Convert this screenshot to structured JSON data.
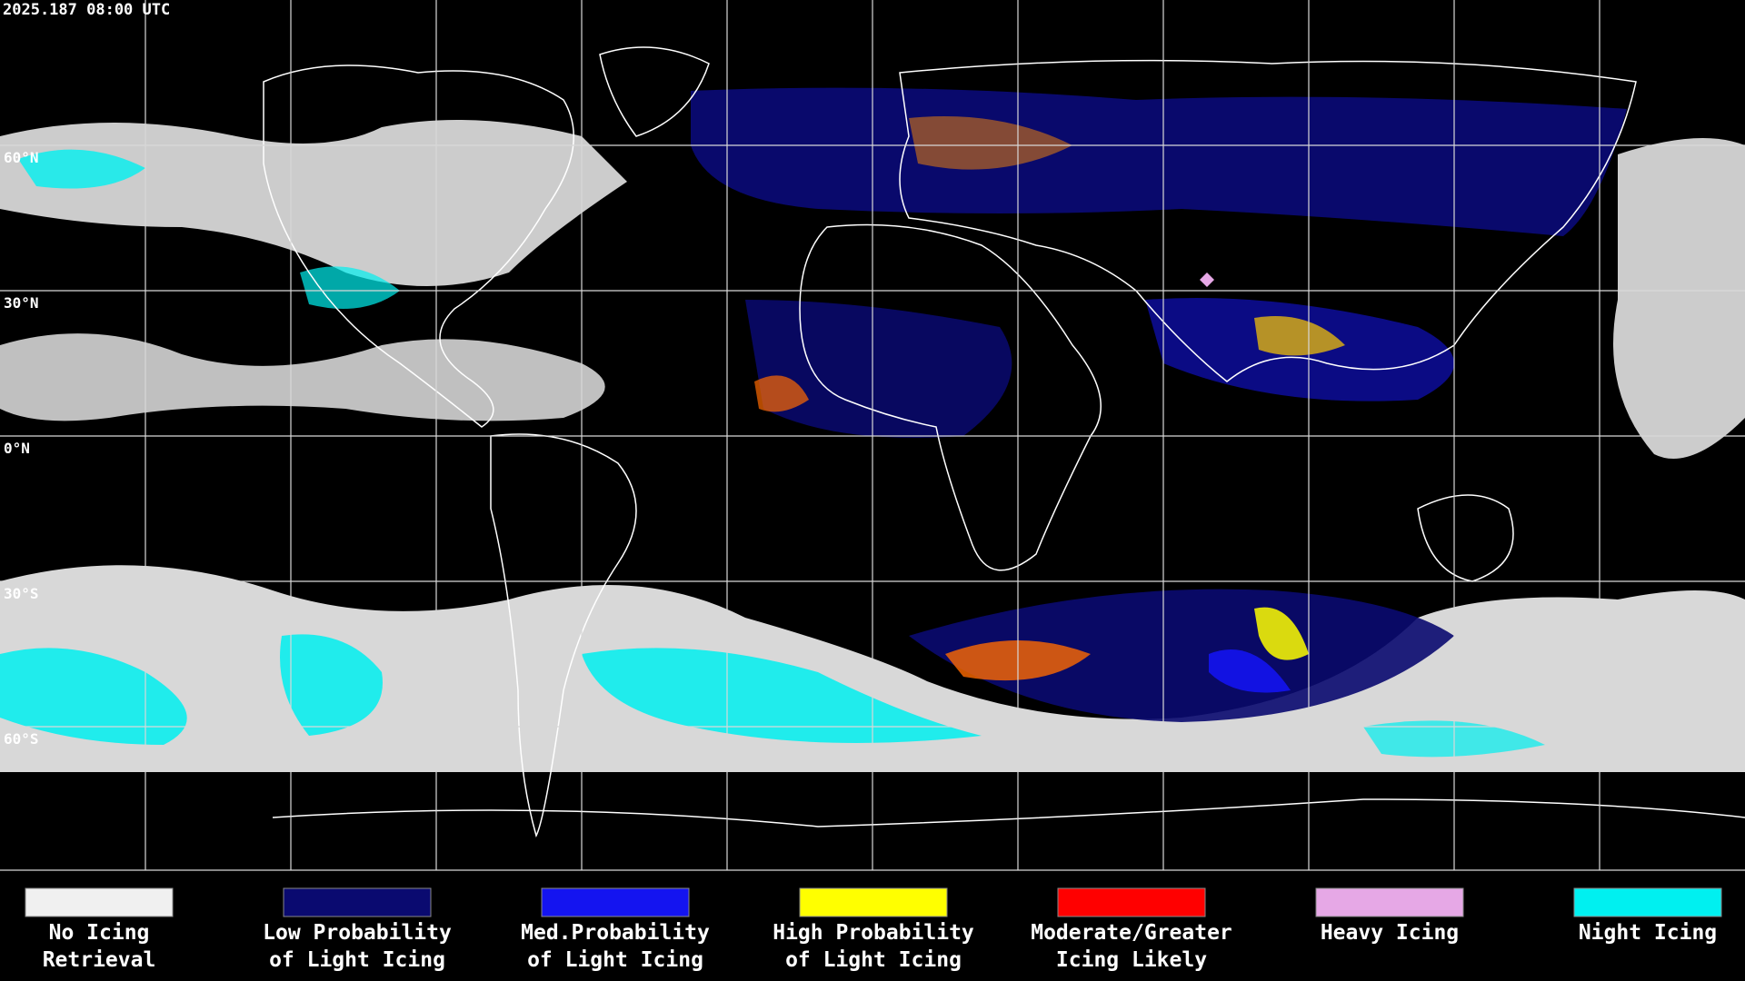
{
  "header": {
    "timestamp": "2025.187 08:00 UTC"
  },
  "map": {
    "lat_labels": [
      "60°N",
      "30°N",
      "0°N",
      "30°S",
      "60°S"
    ]
  },
  "legend": {
    "items": [
      {
        "lines": [
          "No Icing",
          "Retrieval"
        ],
        "color": "#f0f0f0"
      },
      {
        "lines": [
          "Low Probability",
          "of Light Icing"
        ],
        "color": "#0a0a70"
      },
      {
        "lines": [
          "Med.Probability",
          "of Light Icing"
        ],
        "color": "#1414f0"
      },
      {
        "lines": [
          "High Probability",
          "of Light Icing"
        ],
        "color": "#ffff00"
      },
      {
        "lines": [
          "Moderate/Greater",
          "Icing Likely"
        ],
        "color": "#ff0000"
      },
      {
        "lines": [
          "Heavy Icing"
        ],
        "color": "#e6a8e6"
      },
      {
        "lines": [
          "Night Icing"
        ],
        "color": "#00f0f0"
      }
    ]
  }
}
